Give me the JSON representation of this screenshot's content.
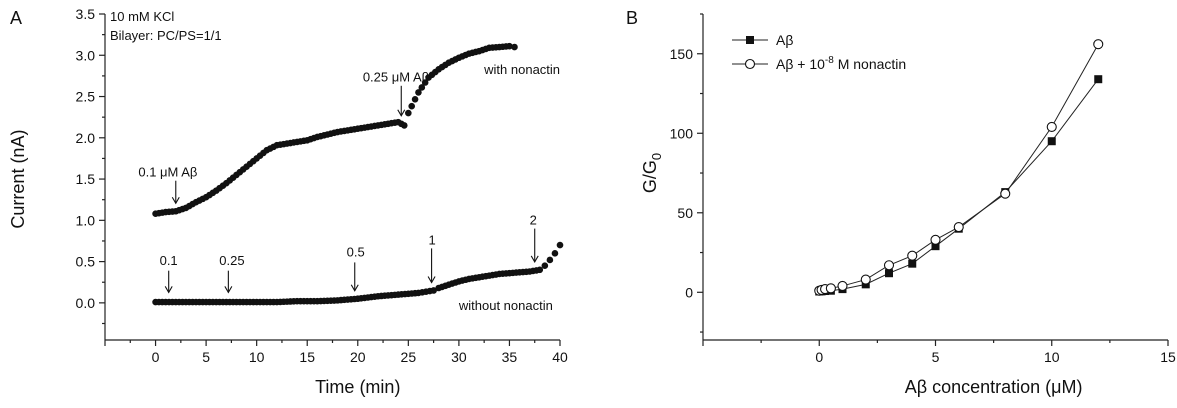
{
  "chart_data": [
    {
      "panel_letter": "A",
      "type": "scatter",
      "xlabel": "Time (min)",
      "ylabel": "Current (nA)",
      "xlim": [
        -5,
        40
      ],
      "ylim": [
        -0.45,
        3.5
      ],
      "xticks": [
        "0",
        "5",
        "10",
        "15",
        "20",
        "25",
        "30",
        "35",
        "40"
      ],
      "yticks": [
        "0.0",
        "0.5",
        "1.0",
        "1.5",
        "2.0",
        "2.5",
        "3.0",
        "3.5"
      ],
      "info_lines": [
        "10 mM KCl",
        "Bilayer: PC/PS=1/1"
      ],
      "series": [
        {
          "name": "with nonactin",
          "points": [
            [
              0,
              1.08
            ],
            [
              1,
              1.1
            ],
            [
              2,
              1.11
            ],
            [
              3,
              1.15
            ],
            [
              4,
              1.22
            ],
            [
              5,
              1.28
            ],
            [
              6,
              1.36
            ],
            [
              7,
              1.45
            ],
            [
              8,
              1.55
            ],
            [
              9,
              1.65
            ],
            [
              10,
              1.75
            ],
            [
              11,
              1.85
            ],
            [
              12,
              1.91
            ],
            [
              13,
              1.93
            ],
            [
              14,
              1.95
            ],
            [
              15,
              1.97
            ],
            [
              16,
              2.01
            ],
            [
              17,
              2.04
            ],
            [
              18,
              2.07
            ],
            [
              19,
              2.09
            ],
            [
              20,
              2.11
            ],
            [
              21,
              2.13
            ],
            [
              22,
              2.15
            ],
            [
              23,
              2.17
            ],
            [
              24,
              2.19
            ],
            [
              24.6,
              2.15
            ],
            [
              25,
              2.3
            ],
            [
              26,
              2.55
            ],
            [
              27,
              2.73
            ],
            [
              28,
              2.83
            ],
            [
              29,
              2.91
            ],
            [
              30,
              2.97
            ],
            [
              31,
              3.02
            ],
            [
              32,
              3.05
            ],
            [
              33,
              3.09
            ],
            [
              34,
              3.1
            ],
            [
              35,
              3.11
            ],
            [
              35.5,
              3.1
            ]
          ]
        },
        {
          "name": "without nonactin",
          "points": [
            [
              0,
              0.01
            ],
            [
              2,
              0.01
            ],
            [
              4,
              0.01
            ],
            [
              6,
              0.01
            ],
            [
              8,
              0.01
            ],
            [
              10,
              0.01
            ],
            [
              12,
              0.01
            ],
            [
              14,
              0.02
            ],
            [
              16,
              0.02
            ],
            [
              18,
              0.03
            ],
            [
              20,
              0.05
            ],
            [
              22,
              0.08
            ],
            [
              24,
              0.1
            ],
            [
              26,
              0.12
            ],
            [
              27.5,
              0.15
            ],
            [
              28,
              0.18
            ],
            [
              29,
              0.22
            ],
            [
              30,
              0.26
            ],
            [
              31,
              0.29
            ],
            [
              32,
              0.31
            ],
            [
              33,
              0.33
            ],
            [
              34,
              0.35
            ],
            [
              35,
              0.36
            ],
            [
              36,
              0.37
            ],
            [
              37,
              0.38
            ],
            [
              38,
              0.4
            ],
            [
              38.5,
              0.45
            ],
            [
              39,
              0.52
            ],
            [
              39.5,
              0.6
            ],
            [
              40,
              0.7
            ]
          ]
        }
      ],
      "annotations": [
        {
          "text": "0.1 μM Aβ",
          "x": 2,
          "y": 1.11
        },
        {
          "text": "0.25 μM Aβ",
          "x": 24.3,
          "y": 2.17
        },
        {
          "text": "0.1",
          "x": 1.3,
          "y": 0.03
        },
        {
          "text": "0.25",
          "x": 7.2,
          "y": 0.03
        },
        {
          "text": "0.5",
          "x": 19.7,
          "y": 0.05
        },
        {
          "text": "1",
          "x": 27.3,
          "y": 0.15
        },
        {
          "text": "2",
          "x": 37.5,
          "y": 0.4
        }
      ]
    },
    {
      "panel_letter": "B",
      "type": "line",
      "xlabel": "Aβ concentration (μM)",
      "ylabel": "G/G",
      "ylabel_subscript": "0",
      "xlim": [
        -5,
        15
      ],
      "ylim": [
        -30,
        175
      ],
      "xticks": [
        "0",
        "5",
        "10",
        "15"
      ],
      "yticks": [
        "0",
        "50",
        "100",
        "150"
      ],
      "series": [
        {
          "name": "Aβ",
          "marker": "filled-square",
          "x": [
            0,
            0.1,
            0.25,
            0.5,
            1,
            2,
            3,
            4,
            5,
            6,
            8,
            10,
            12
          ],
          "y": [
            0.5,
            0.6,
            0.8,
            1,
            2,
            5,
            12,
            18,
            29,
            40,
            63,
            95,
            134
          ]
        },
        {
          "name": "Aβ + 10",
          "name_sup": "-8",
          "name_suffix": " M nonactin",
          "marker": "open-circle",
          "x": [
            0,
            0.1,
            0.25,
            0.5,
            1,
            2,
            3,
            4,
            5,
            6,
            8,
            10,
            12
          ],
          "y": [
            1,
            1.5,
            2,
            2.5,
            4,
            8,
            17,
            23,
            33,
            41,
            62,
            104,
            156
          ]
        }
      ]
    }
  ]
}
